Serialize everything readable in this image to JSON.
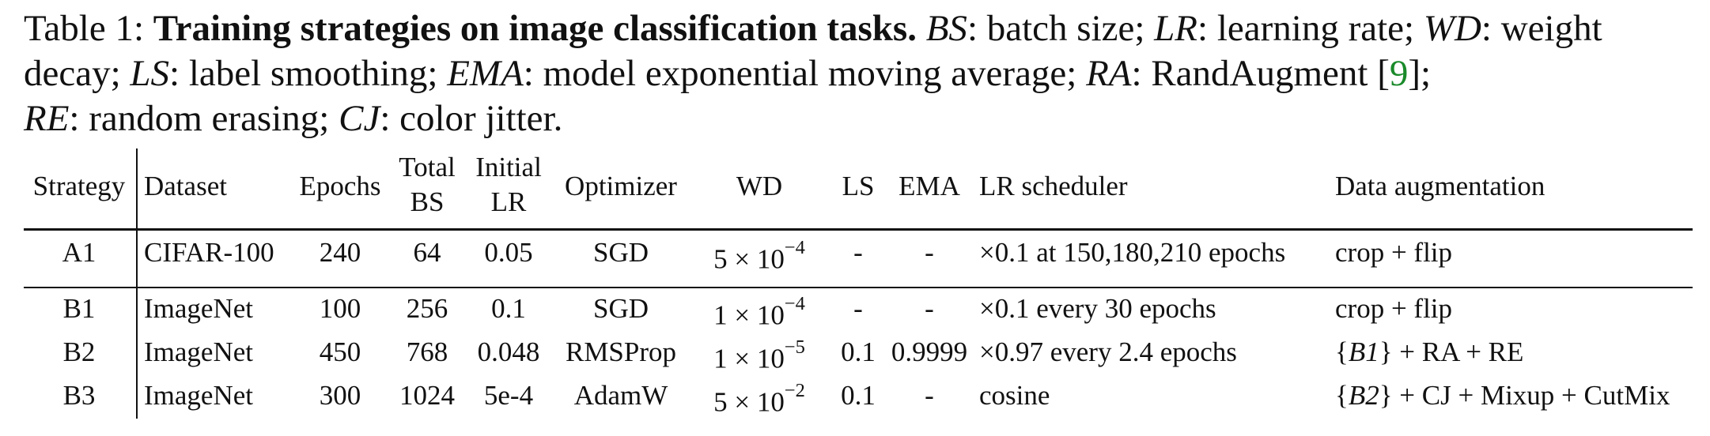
{
  "caption": {
    "label": "Table 1:",
    "title": "Training strategies on image classification tasks.",
    "parts": [
      {
        "abbr": "BS",
        "def": ": batch size; "
      },
      {
        "abbr": "LR",
        "def": ": learning rate; "
      },
      {
        "abbr": "WD",
        "def": ": weight decay; "
      },
      {
        "abbr": "LS",
        "def": ": label smoothing; "
      },
      {
        "abbr": "EMA",
        "def": ": model exponential moving average; "
      },
      {
        "abbr": "RA",
        "def": ": RandAugment "
      },
      {
        "abbr": "RE",
        "def": ": random erasing; "
      },
      {
        "abbr": "CJ",
        "def": ": color jitter."
      }
    ],
    "ref_open": "[",
    "ref": "9",
    "ref_close": "];"
  },
  "table": {
    "headers": {
      "strategy": "Strategy",
      "dataset": "Dataset",
      "epochs": "Epochs",
      "total_bs_1": "Total",
      "total_bs_2": "BS",
      "initial_lr_1": "Initial",
      "initial_lr_2": "LR",
      "optimizer": "Optimizer",
      "wd": "WD",
      "ls": "LS",
      "ema": "EMA",
      "lr_scheduler": "LR scheduler",
      "data_aug": "Data augmentation"
    },
    "rows": [
      {
        "strategy": "A1",
        "dataset": "CIFAR-100",
        "epochs": "240",
        "bs": "64",
        "lr": "0.05",
        "optimizer": "SGD",
        "wd_base": "5 × 10",
        "wd_exp": "−4",
        "ls": "-",
        "ema": "-",
        "scheduler": "×0.1 at 150,180,210 epochs",
        "aug_ref": "",
        "aug": "crop + flip"
      },
      {
        "strategy": "B1",
        "dataset": "ImageNet",
        "epochs": "100",
        "bs": "256",
        "lr": "0.1",
        "optimizer": "SGD",
        "wd_base": "1 × 10",
        "wd_exp": "−4",
        "ls": "-",
        "ema": "-",
        "scheduler": "×0.1 every 30 epochs",
        "aug_ref": "",
        "aug": "crop + flip"
      },
      {
        "strategy": "B2",
        "dataset": "ImageNet",
        "epochs": "450",
        "bs": "768",
        "lr": "0.048",
        "optimizer": "RMSProp",
        "wd_base": "1 × 10",
        "wd_exp": "−5",
        "ls": "0.1",
        "ema": "0.9999",
        "scheduler": "×0.97 every 2.4 epochs",
        "aug_ref": "B1",
        "aug": " + RA + RE"
      },
      {
        "strategy": "B3",
        "dataset": "ImageNet",
        "epochs": "300",
        "bs": "1024",
        "lr": "5e-4",
        "optimizer": "AdamW",
        "wd_base": "5 × 10",
        "wd_exp": "−2",
        "ls": "0.1",
        "ema": "-",
        "scheduler": "cosine",
        "aug_ref": "B2",
        "aug": " + CJ + Mixup + CutMix"
      }
    ]
  }
}
